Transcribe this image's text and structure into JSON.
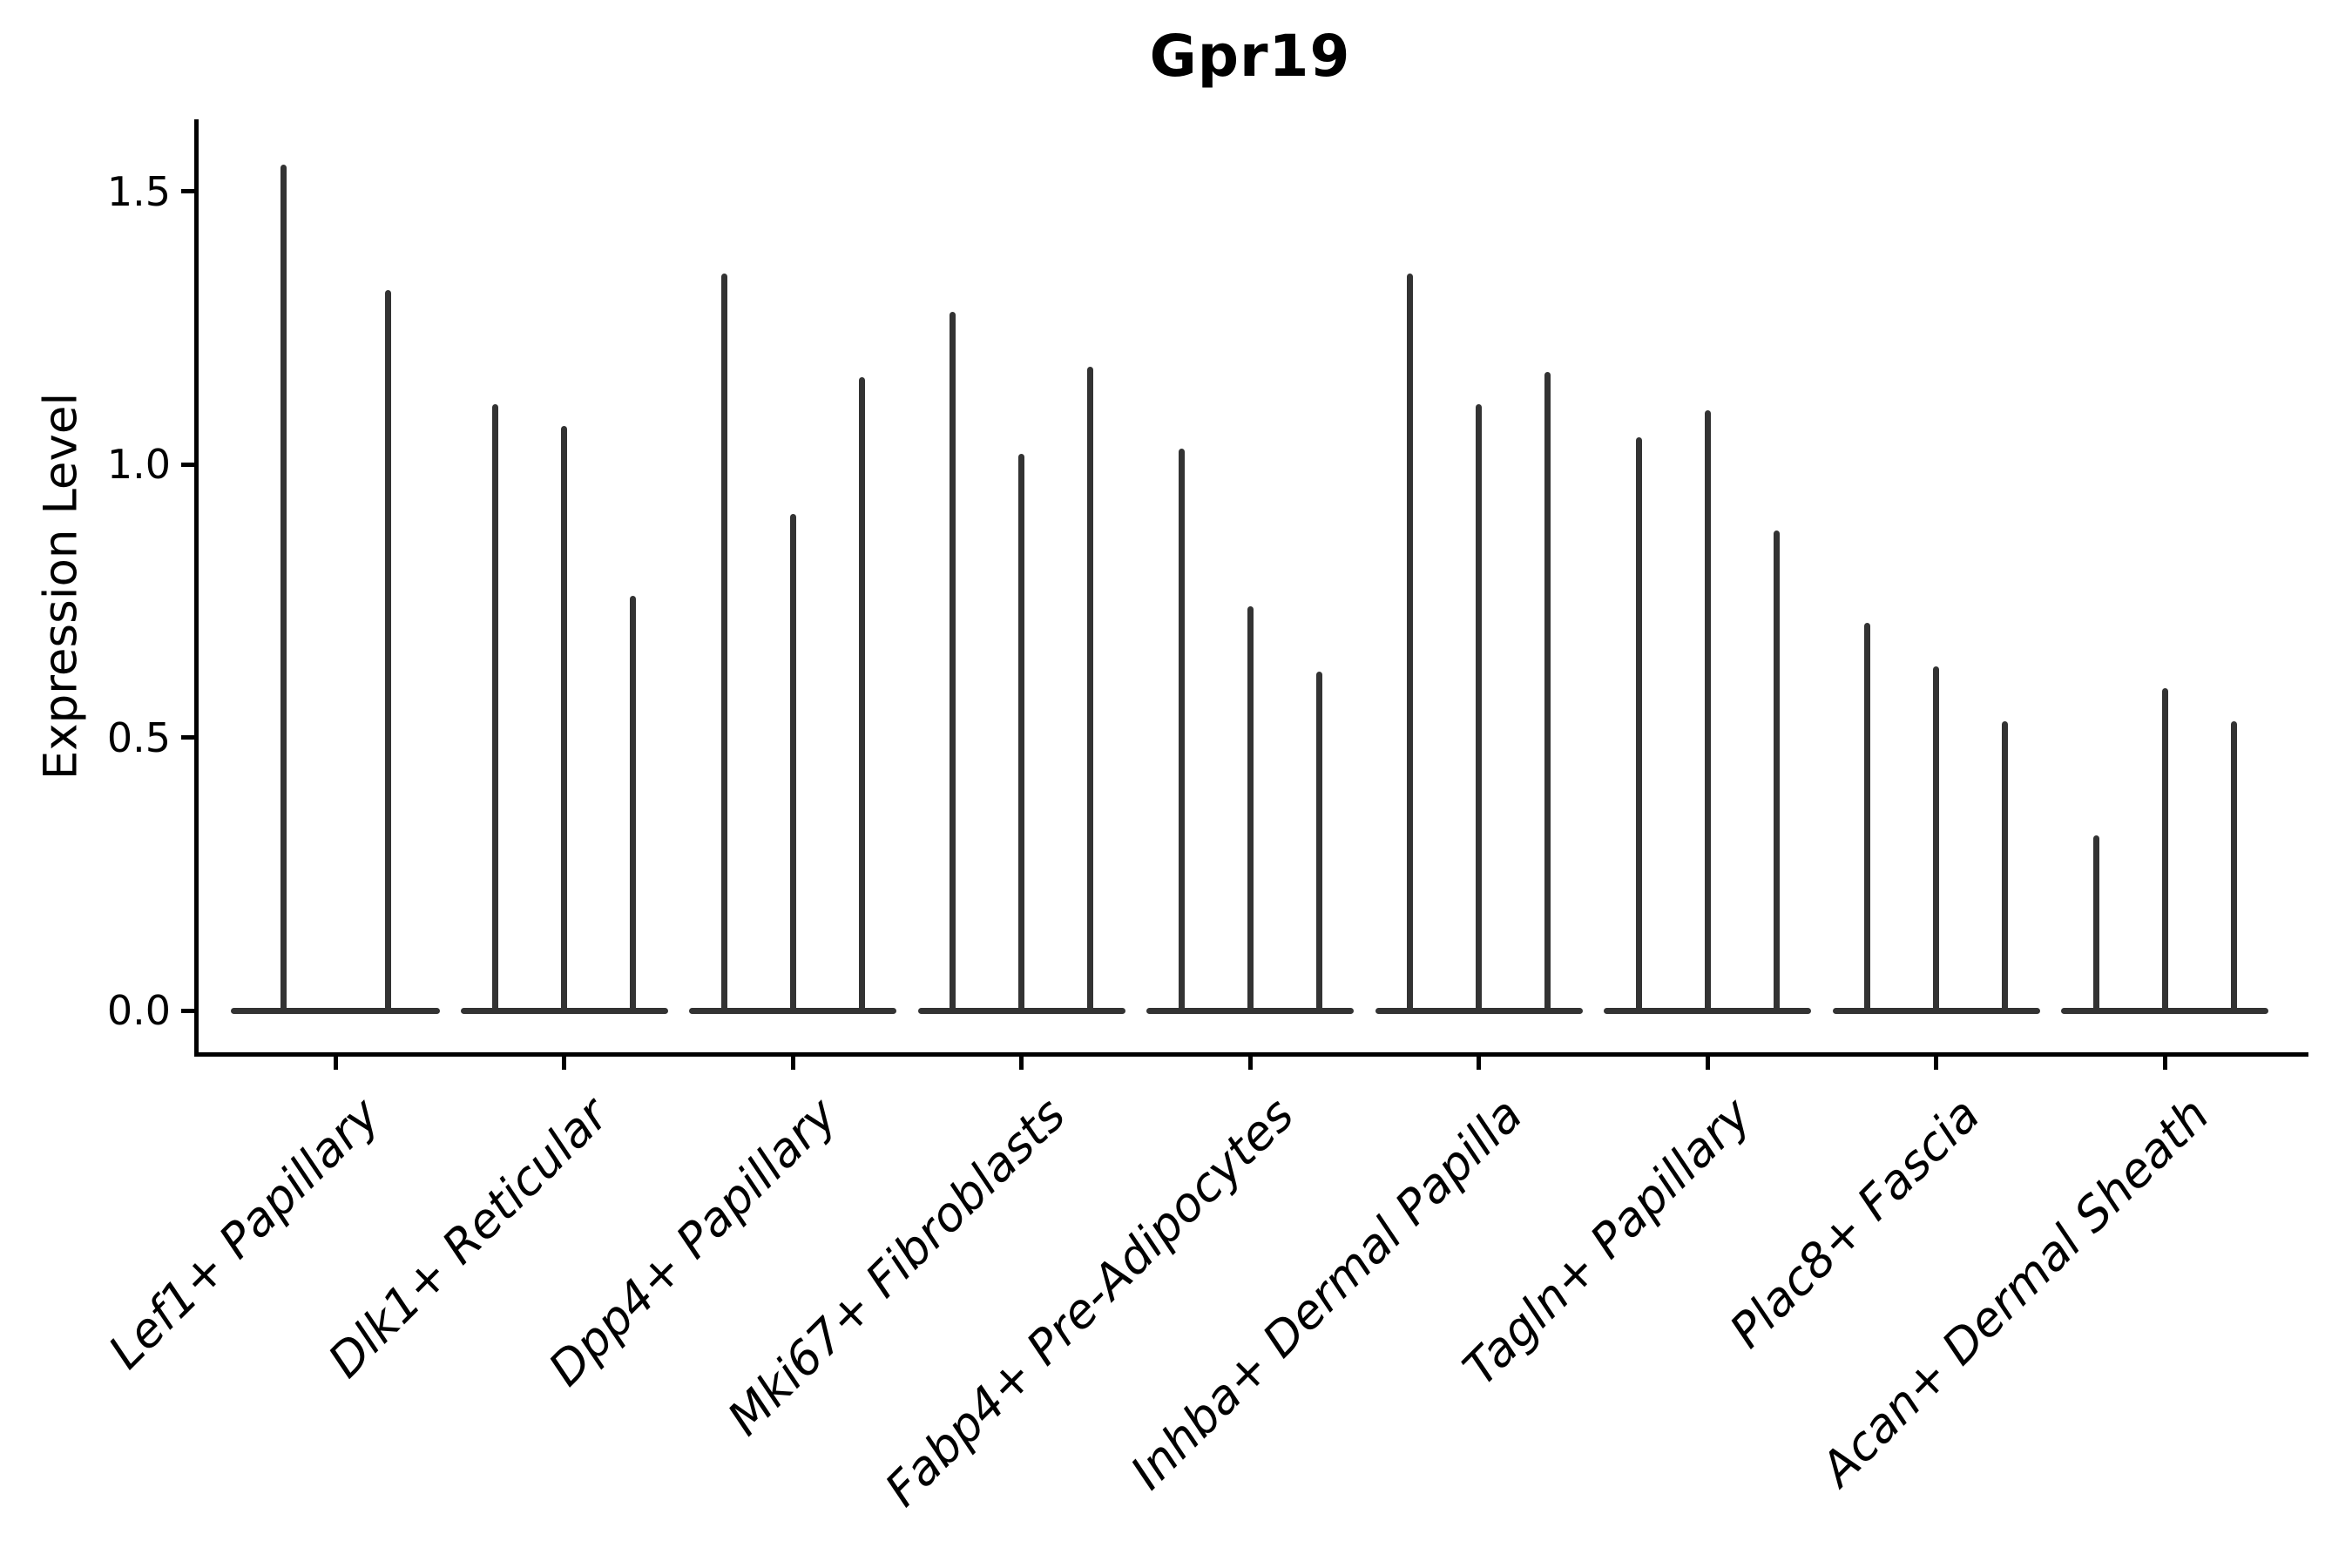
{
  "figure": {
    "title": "Gpr19",
    "y_axis": {
      "label": "Expression Level",
      "ticks": [
        {
          "label": "0.0",
          "value": 0.0
        },
        {
          "label": "0.5",
          "value": 0.5
        },
        {
          "label": "1.0",
          "value": 1.0
        },
        {
          "label": "1.5",
          "value": 1.5
        }
      ]
    }
  },
  "chart_data": {
    "type": "violin",
    "title": "Gpr19",
    "xlabel": "",
    "ylabel": "Expression Level",
    "ylim": [
      0,
      1.63
    ],
    "grid": false,
    "legend": false,
    "x_tick_rotation_deg": 45,
    "violin_style": "narrow spikes rising from a flattened base at expression 0; each spike top is the maximum expression value",
    "categories": [
      "Lef1+ Papillary",
      "Dlk1+ Reticular",
      "Dpp4+ Papillary",
      "Mki67+ Fibroblasts",
      "Fabp4+ Pre-Adipocytes",
      "Inhba+ Dermal Papilla",
      "Tagln+ Papillary",
      "Plac8+ Fascia",
      "Acan+ Dermal Sheath"
    ],
    "series": [
      {
        "category": "Lef1+ Papillary",
        "spike_peaks": [
          1.55,
          1.32
        ]
      },
      {
        "category": "Dlk1+ Reticular",
        "spike_peaks": [
          1.11,
          1.07,
          0.76
        ]
      },
      {
        "category": "Dpp4+ Papillary",
        "spike_peaks": [
          1.35,
          0.91,
          1.16
        ]
      },
      {
        "category": "Mki67+ Fibroblasts",
        "spike_peaks": [
          1.28,
          1.02,
          1.18
        ]
      },
      {
        "category": "Fabp4+ Pre-Adipocytes",
        "spike_peaks": [
          1.03,
          0.74,
          0.62
        ]
      },
      {
        "category": "Inhba+ Dermal Papilla",
        "spike_peaks": [
          1.35,
          1.11,
          1.17
        ]
      },
      {
        "category": "Tagln+ Papillary",
        "spike_peaks": [
          1.05,
          1.1,
          0.88
        ]
      },
      {
        "category": "Plac8+ Fascia",
        "spike_peaks": [
          0.71,
          0.63,
          0.53
        ]
      },
      {
        "category": "Acan+ Dermal Sheath",
        "spike_peaks": [
          0.32,
          0.59,
          0.53
        ]
      }
    ],
    "colors": {
      "violin": "#333333",
      "axis": "#000000",
      "background": "#ffffff"
    }
  }
}
